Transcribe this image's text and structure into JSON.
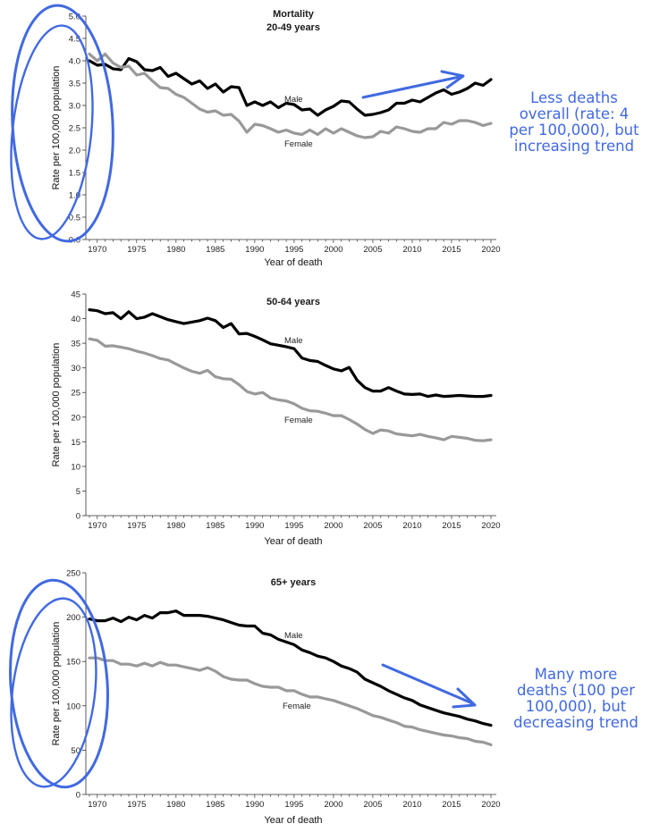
{
  "chart_data": [
    {
      "type": "line",
      "title": [
        "Mortality",
        "20-49 years"
      ],
      "xlabel": "Year of death",
      "ylabel": "Rate per 100,000 population",
      "xlim": [
        1969,
        2020
      ],
      "ylim": [
        0,
        5
      ],
      "yticks": [
        "0.0",
        "0.5",
        "1.0",
        "1.5",
        "2.0",
        "2.5",
        "3.0",
        "3.5",
        "4.0",
        "4.5",
        "5.0"
      ],
      "xticks": [
        "1970",
        "1975",
        "1980",
        "1985",
        "1990",
        "1995",
        "2000",
        "2005",
        "2010",
        "2015",
        "2020"
      ],
      "x": [
        1969,
        1970,
        1971,
        1972,
        1973,
        1974,
        1975,
        1976,
        1977,
        1978,
        1979,
        1980,
        1981,
        1982,
        1983,
        1984,
        1985,
        1986,
        1987,
        1988,
        1989,
        1990,
        1991,
        1992,
        1993,
        1994,
        1995,
        1996,
        1997,
        1998,
        1999,
        2000,
        2001,
        2002,
        2003,
        2004,
        2005,
        2006,
        2007,
        2008,
        2009,
        2010,
        2011,
        2012,
        2013,
        2014,
        2015,
        2016,
        2017,
        2018,
        2019,
        2020
      ],
      "series": [
        {
          "name": "Male",
          "color": "#000000",
          "values": [
            4.0,
            3.9,
            3.92,
            3.82,
            3.8,
            4.05,
            3.98,
            3.8,
            3.78,
            3.85,
            3.65,
            3.72,
            3.6,
            3.48,
            3.55,
            3.38,
            3.48,
            3.3,
            3.42,
            3.4,
            3.0,
            3.08,
            3.0,
            3.08,
            2.95,
            3.05,
            3.02,
            2.9,
            2.92,
            2.78,
            2.9,
            2.98,
            3.1,
            3.08,
            2.92,
            2.78,
            2.8,
            2.84,
            2.9,
            3.05,
            3.05,
            3.12,
            3.08,
            3.18,
            3.28,
            3.35,
            3.25,
            3.3,
            3.38,
            3.5,
            3.45,
            3.58
          ]
        },
        {
          "name": "Female",
          "color": "#999999",
          "values": [
            4.15,
            4.0,
            4.15,
            3.95,
            3.85,
            3.88,
            3.68,
            3.72,
            3.55,
            3.4,
            3.38,
            3.25,
            3.18,
            3.05,
            2.92,
            2.85,
            2.88,
            2.78,
            2.8,
            2.65,
            2.4,
            2.58,
            2.55,
            2.48,
            2.4,
            2.45,
            2.38,
            2.35,
            2.45,
            2.35,
            2.48,
            2.38,
            2.48,
            2.4,
            2.32,
            2.28,
            2.3,
            2.42,
            2.38,
            2.52,
            2.48,
            2.42,
            2.4,
            2.48,
            2.48,
            2.62,
            2.58,
            2.66,
            2.66,
            2.62,
            2.55,
            2.6
          ]
        }
      ]
    },
    {
      "type": "line",
      "title": [
        "50-64 years"
      ],
      "xlabel": "Year of death",
      "ylabel": "Rate per 100,000 population",
      "xlim": [
        1969,
        2020
      ],
      "ylim": [
        0,
        45
      ],
      "yticks": [
        "0",
        "5",
        "10",
        "15",
        "20",
        "25",
        "30",
        "35",
        "40",
        "45"
      ],
      "xticks": [
        "1970",
        "1975",
        "1980",
        "1985",
        "1990",
        "1995",
        "2000",
        "2005",
        "2010",
        "2015",
        "2020"
      ],
      "x": [
        1969,
        1970,
        1971,
        1972,
        1973,
        1974,
        1975,
        1976,
        1977,
        1978,
        1979,
        1980,
        1981,
        1982,
        1983,
        1984,
        1985,
        1986,
        1987,
        1988,
        1989,
        1990,
        1991,
        1992,
        1993,
        1994,
        1995,
        1996,
        1997,
        1998,
        1999,
        2000,
        2001,
        2002,
        2003,
        2004,
        2005,
        2006,
        2007,
        2008,
        2009,
        2010,
        2011,
        2012,
        2013,
        2014,
        2015,
        2016,
        2017,
        2018,
        2019,
        2020
      ],
      "series": [
        {
          "name": "Male",
          "color": "#000000",
          "values": [
            41.8,
            41.6,
            41.0,
            41.2,
            40.0,
            41.4,
            40.0,
            40.3,
            41.0,
            40.4,
            39.8,
            39.4,
            39.0,
            39.3,
            39.6,
            40.1,
            39.6,
            38.2,
            39.0,
            36.9,
            37.0,
            36.4,
            35.7,
            34.9,
            34.6,
            34.3,
            33.9,
            32.0,
            31.5,
            31.3,
            30.5,
            29.8,
            29.4,
            30.1,
            27.5,
            26.0,
            25.3,
            25.3,
            26.0,
            25.3,
            24.7,
            24.6,
            24.7,
            24.2,
            24.5,
            24.2,
            24.3,
            24.4,
            24.3,
            24.2,
            24.2,
            24.4
          ]
        },
        {
          "name": "Female",
          "color": "#999999",
          "values": [
            35.9,
            35.6,
            34.4,
            34.5,
            34.2,
            33.9,
            33.4,
            33.0,
            32.5,
            31.9,
            31.6,
            30.8,
            30.0,
            29.3,
            28.9,
            29.5,
            28.2,
            27.8,
            27.7,
            26.6,
            25.2,
            24.7,
            25.0,
            23.9,
            23.5,
            23.3,
            22.7,
            21.8,
            21.3,
            21.2,
            20.8,
            20.3,
            20.3,
            19.5,
            18.6,
            17.5,
            16.7,
            17.4,
            17.2,
            16.6,
            16.4,
            16.2,
            16.5,
            16.1,
            15.8,
            15.4,
            16.1,
            15.9,
            15.7,
            15.3,
            15.2,
            15.4
          ]
        }
      ]
    },
    {
      "type": "line",
      "title": [
        "65+ years"
      ],
      "xlabel": "Year of death",
      "ylabel": "Rate per 100,000 population",
      "xlim": [
        1969,
        2020
      ],
      "ylim": [
        0,
        250
      ],
      "yticks": [
        "0",
        "50",
        "100",
        "150",
        "200",
        "250"
      ],
      "xticks": [
        "1970",
        "1975",
        "1980",
        "1985",
        "1990",
        "1995",
        "2000",
        "2005",
        "2010",
        "2015",
        "2020"
      ],
      "x": [
        1969,
        1970,
        1971,
        1972,
        1973,
        1974,
        1975,
        1976,
        1977,
        1978,
        1979,
        1980,
        1981,
        1982,
        1983,
        1984,
        1985,
        1986,
        1987,
        1988,
        1989,
        1990,
        1991,
        1992,
        1993,
        1994,
        1995,
        1996,
        1997,
        1998,
        1999,
        2000,
        2001,
        2002,
        2003,
        2004,
        2005,
        2006,
        2007,
        2008,
        2009,
        2010,
        2011,
        2012,
        2013,
        2014,
        2015,
        2016,
        2017,
        2018,
        2019,
        2020
      ],
      "series": [
        {
          "name": "Male",
          "color": "#000000",
          "values": [
            198,
            196,
            196,
            199,
            195,
            200,
            197,
            202,
            199,
            205,
            205,
            207,
            202,
            202,
            202,
            201,
            199,
            197,
            194,
            191,
            190,
            190,
            182,
            180,
            175,
            172,
            169,
            163,
            160,
            156,
            154,
            150,
            145,
            142,
            138,
            130,
            126,
            122,
            117,
            113,
            109,
            106,
            101,
            98,
            95,
            92,
            90,
            88,
            85,
            83,
            80,
            78
          ]
        },
        {
          "name": "Female",
          "color": "#999999",
          "values": [
            154,
            154,
            151,
            151,
            147,
            147,
            145,
            148,
            145,
            149,
            146,
            146,
            144,
            142,
            140,
            143,
            139,
            133,
            130,
            129,
            129,
            125,
            122,
            121,
            121,
            117,
            117,
            113,
            110,
            110,
            108,
            106,
            103,
            100,
            97,
            93,
            89,
            87,
            84,
            81,
            77,
            76,
            73,
            71,
            69,
            67,
            66,
            64,
            63,
            60,
            59,
            56
          ]
        }
      ]
    }
  ],
  "annotations": {
    "top": [
      "Less deaths",
      "overall (rate: 4",
      "per 100,000), but",
      "increasing trend"
    ],
    "bottom": [
      "Many more",
      "deaths (100 per",
      "100,000), but",
      "decreasing trend"
    ],
    "color": "#4169e1"
  }
}
